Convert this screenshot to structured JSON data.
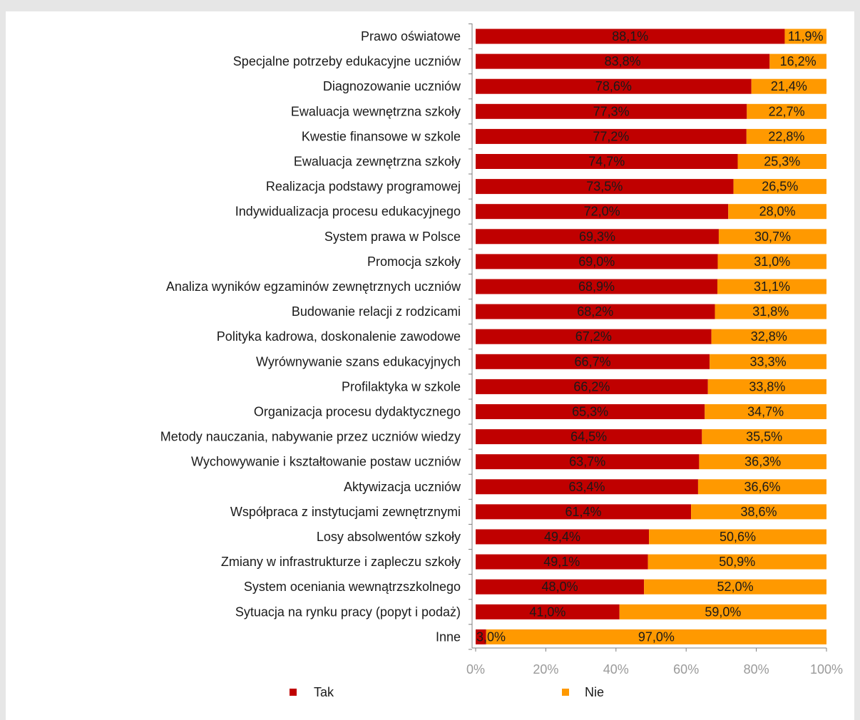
{
  "chart_data": {
    "type": "bar",
    "orientation": "horizontal",
    "stacked": true,
    "categories": [
      "Prawo oświatowe",
      "Specjalne potrzeby edukacyjne uczniów",
      "Diagnozowanie uczniów",
      "Ewaluacja wewnętrzna szkoły",
      "Kwestie finansowe w szkole",
      "Ewaluacja zewnętrzna szkoły",
      "Realizacja podstawy programowej",
      "Indywidualizacja procesu edukacyjnego",
      "System prawa w Polsce",
      "Promocja szkoły",
      "Analiza wyników egzaminów zewnętrznych uczniów",
      "Budowanie relacji z rodzicami",
      "Polityka kadrowa, doskonalenie zawodowe",
      "Wyrównywanie szans edukacyjnych",
      "Profilaktyka w szkole",
      "Organizacja procesu dydaktycznego",
      "Metody nauczania, nabywanie przez uczniów wiedzy",
      "Wychowywanie i kształtowanie postaw uczniów",
      "Aktywizacja uczniów",
      "Współpraca z instytucjami zewnętrznymi",
      "Losy absolwentów szkoły",
      "Zmiany w infrastrukturze i zapleczu szkoły",
      "System oceniania wewnątrzszkolnego",
      "Sytuacja na rynku pracy (popyt i podaż)",
      "Inne"
    ],
    "series": [
      {
        "name": "Tak",
        "color": "#c00000",
        "values": [
          88.1,
          83.8,
          78.6,
          77.3,
          77.2,
          74.7,
          73.5,
          72.0,
          69.3,
          69.0,
          68.9,
          68.2,
          67.2,
          66.7,
          66.2,
          65.3,
          64.5,
          63.7,
          63.4,
          61.4,
          49.4,
          49.1,
          48.0,
          41.0,
          3.0
        ],
        "labels": [
          "88,1%",
          "83,8%",
          "78,6%",
          "77,3%",
          "77,2%",
          "74,7%",
          "73,5%",
          "72,0%",
          "69,3%",
          "69,0%",
          "68,9%",
          "68,2%",
          "67,2%",
          "66,7%",
          "66,2%",
          "65,3%",
          "64,5%",
          "63,7%",
          "63,4%",
          "61,4%",
          "49,4%",
          "49,1%",
          "48,0%",
          "41,0%",
          "3,0%"
        ]
      },
      {
        "name": "Nie",
        "color": "#ff9900",
        "values": [
          11.9,
          16.2,
          21.4,
          22.7,
          22.8,
          25.3,
          26.5,
          28.0,
          30.7,
          31.0,
          31.1,
          31.8,
          32.8,
          33.3,
          33.8,
          34.7,
          35.5,
          36.3,
          36.6,
          38.6,
          50.6,
          50.9,
          52.0,
          59.0,
          97.0
        ],
        "labels": [
          "11,9%",
          "16,2%",
          "21,4%",
          "22,7%",
          "22,8%",
          "25,3%",
          "26,5%",
          "28,0%",
          "30,7%",
          "31,0%",
          "31,1%",
          "31,8%",
          "32,8%",
          "33,3%",
          "33,8%",
          "34,7%",
          "35,5%",
          "36,3%",
          "36,6%",
          "38,6%",
          "50,6%",
          "50,9%",
          "52,0%",
          "59,0%",
          "97,0%"
        ]
      }
    ],
    "xlim": [
      0,
      100
    ],
    "xticks": [
      "0%",
      "20%",
      "40%",
      "60%",
      "80%",
      "100%"
    ],
    "xtick_values": [
      0,
      20,
      40,
      60,
      80,
      100
    ],
    "title": "",
    "xlabel": "",
    "ylabel": "",
    "grid": false,
    "legend_position": "bottom"
  }
}
